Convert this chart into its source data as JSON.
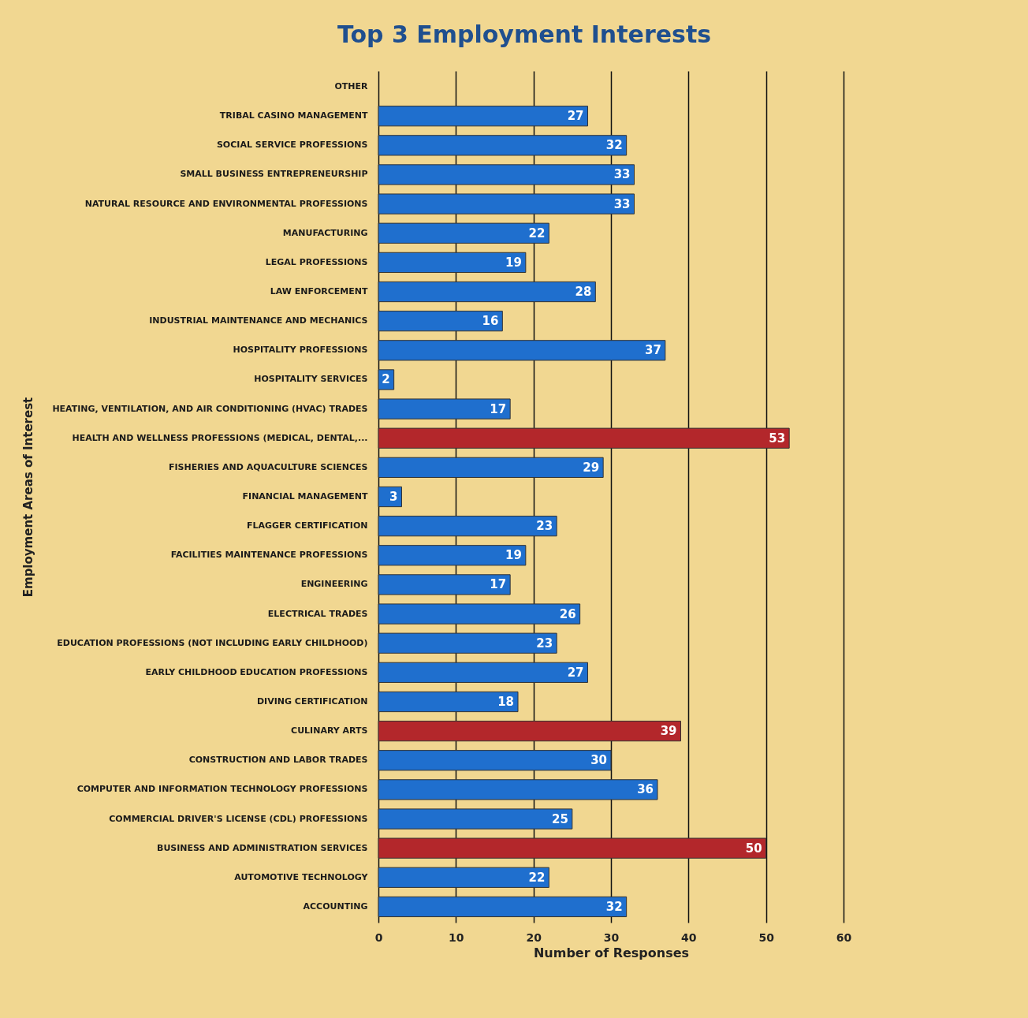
{
  "chart_data": {
    "type": "bar",
    "orientation": "horizontal",
    "title": "Top 3 Employment Interests",
    "xlabel": "Number of Responses",
    "ylabel": "Employment Areas of Interest",
    "categories": [
      "OTHER",
      "TRIBAL CASINO MANAGEMENT",
      "SOCIAL SERVICE PROFESSIONS",
      "SMALL BUSINESS ENTREPRENEURSHIP",
      "NATURAL RESOURCE AND ENVIRONMENTAL PROFESSIONS",
      "MANUFACTURING",
      "LEGAL PROFESSIONS",
      "LAW ENFORCEMENT",
      "INDUSTRIAL MAINTENANCE AND MECHANICS",
      "HOSPITALITY PROFESSIONS",
      "HOSPITALITY SERVICES",
      "HEATING, VENTILATION, AND AIR CONDITIONING (HVAC) TRADES",
      "HEALTH AND WELLNESS PROFESSIONS (MEDICAL, DENTAL,...",
      "FISHERIES AND AQUACULTURE SCIENCES",
      "FINANCIAL MANAGEMENT",
      "FLAGGER CERTIFICATION",
      "FACILITIES MAINTENANCE PROFESSIONS",
      "ENGINEERING",
      "ELECTRICAL TRADES",
      "EDUCATION PROFESSIONS (NOT INCLUDING EARLY CHILDHOOD)",
      "EARLY CHILDHOOD EDUCATION PROFESSIONS",
      "DIVING CERTIFICATION",
      "CULINARY ARTS",
      "CONSTRUCTION AND LABOR TRADES",
      "COMPUTER AND INFORMATION TECHNOLOGY PROFESSIONS",
      "COMMERCIAL DRIVER'S LICENSE (CDL) PROFESSIONS",
      "BUSINESS AND ADMINISTRATION SERVICES",
      "AUTOMOTIVE TECHNOLOGY",
      "ACCOUNTING"
    ],
    "values": [
      null,
      27,
      32,
      33,
      33,
      22,
      19,
      28,
      16,
      37,
      2,
      17,
      53,
      29,
      3,
      23,
      19,
      17,
      26,
      23,
      27,
      18,
      39,
      30,
      36,
      25,
      50,
      22,
      32
    ],
    "colors": [
      "#1f6fce",
      "#1f6fce",
      "#1f6fce",
      "#1f6fce",
      "#1f6fce",
      "#1f6fce",
      "#1f6fce",
      "#1f6fce",
      "#1f6fce",
      "#1f6fce",
      "#1f6fce",
      "#1f6fce",
      "#b3272b",
      "#1f6fce",
      "#1f6fce",
      "#1f6fce",
      "#1f6fce",
      "#1f6fce",
      "#1f6fce",
      "#1f6fce",
      "#1f6fce",
      "#1f6fce",
      "#b3272b",
      "#1f6fce",
      "#1f6fce",
      "#1f6fce",
      "#b3272b",
      "#1f6fce",
      "#1f6fce"
    ],
    "xlim": [
      0,
      60
    ],
    "xticks": [
      0,
      10,
      20,
      30,
      40,
      50,
      60
    ],
    "grid": "x",
    "data_labels": true
  }
}
